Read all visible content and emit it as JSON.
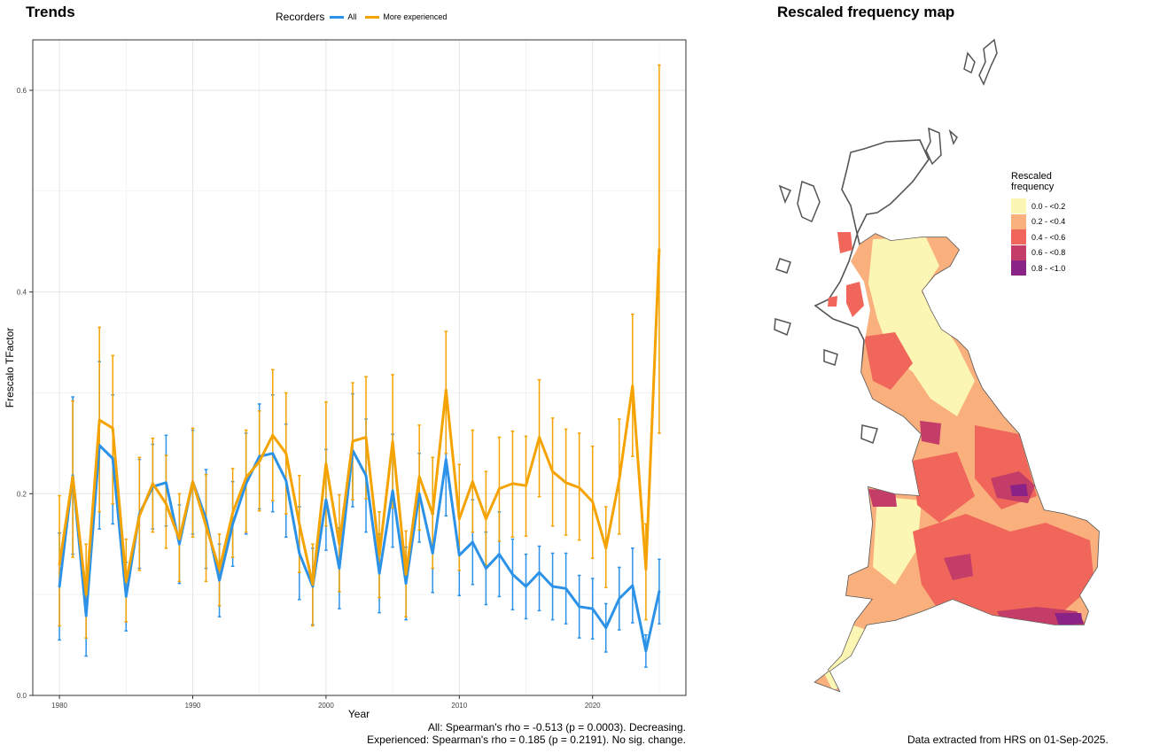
{
  "titles": {
    "trends": "Trends",
    "map": "Rescaled frequency map"
  },
  "legend": {
    "title": "Recorders",
    "items": [
      {
        "label": "All",
        "color": "#2c92e8"
      },
      {
        "label": "More experienced",
        "color": "#f5a300"
      }
    ]
  },
  "stats": {
    "all": "All: Spearman's rho = -0.513 (p = 0.0003). Decreasing.",
    "experienced": "Experienced: Spearman's rho = 0.185 (p = 0.2191). No sig. change."
  },
  "credit": "Data extracted from HRS on 01-Sep-2025.",
  "map_legend": {
    "title_line1": "Rescaled",
    "title_line2": "frequency",
    "classes": [
      {
        "label": "0.0 - <0.2",
        "color": "#fcf6b4"
      },
      {
        "label": "0.2 - <0.4",
        "color": "#f9b07d"
      },
      {
        "label": "0.4 - <0.6",
        "color": "#f0665a"
      },
      {
        "label": "0.6 - <0.8",
        "color": "#c43c68"
      },
      {
        "label": "0.8 - <1.0",
        "color": "#8a2387"
      }
    ]
  },
  "chart_data": {
    "type": "line",
    "xlabel": "Year",
    "ylabel": "Frescalo TFactor",
    "xlim": [
      1978,
      2027
    ],
    "ylim": [
      0,
      0.65
    ],
    "x_ticks": [
      1980,
      1990,
      2000,
      2010,
      2020
    ],
    "y_ticks": [
      0.0,
      0.2,
      0.4,
      0.6
    ],
    "y_tick_labels": [
      "0.0",
      "0.2",
      "0.4",
      "0.6"
    ],
    "grid": true,
    "legend_position": "top",
    "error_bars": true,
    "series": [
      {
        "name": "All",
        "color": "#2c92e8",
        "x": [
          1980,
          1981,
          1982,
          1983,
          1984,
          1985,
          1986,
          1987,
          1988,
          1989,
          1990,
          1991,
          1992,
          1993,
          1994,
          1995,
          1996,
          1997,
          1998,
          1999,
          2000,
          2001,
          2002,
          2003,
          2004,
          2005,
          2006,
          2007,
          2008,
          2009,
          2010,
          2011,
          2012,
          2013,
          2014,
          2015,
          2016,
          2017,
          2018,
          2019,
          2020,
          2021,
          2022,
          2023,
          2024,
          2025
        ],
        "y": [
          0.108,
          0.218,
          0.079,
          0.248,
          0.235,
          0.098,
          0.18,
          0.207,
          0.211,
          0.15,
          0.212,
          0.175,
          0.114,
          0.17,
          0.21,
          0.237,
          0.24,
          0.213,
          0.141,
          0.108,
          0.194,
          0.126,
          0.243,
          0.218,
          0.121,
          0.203,
          0.111,
          0.2,
          0.141,
          0.234,
          0.139,
          0.152,
          0.126,
          0.14,
          0.12,
          0.108,
          0.122,
          0.108,
          0.106,
          0.088,
          0.086,
          0.067,
          0.096,
          0.109,
          0.044,
          0.103
        ],
        "lower": [
          0.055,
          0.14,
          0.039,
          0.165,
          0.17,
          0.064,
          0.126,
          0.165,
          0.168,
          0.111,
          0.16,
          0.126,
          0.078,
          0.128,
          0.16,
          0.185,
          0.182,
          0.157,
          0.095,
          0.07,
          0.144,
          0.086,
          0.187,
          0.162,
          0.082,
          0.147,
          0.075,
          0.152,
          0.102,
          0.178,
          0.099,
          0.11,
          0.09,
          0.098,
          0.085,
          0.076,
          0.084,
          0.075,
          0.071,
          0.057,
          0.056,
          0.043,
          0.065,
          0.072,
          0.028,
          0.071
        ],
        "upper": [
          0.161,
          0.296,
          0.117,
          0.331,
          0.298,
          0.132,
          0.234,
          0.249,
          0.258,
          0.189,
          0.263,
          0.224,
          0.15,
          0.212,
          0.26,
          0.289,
          0.298,
          0.269,
          0.187,
          0.146,
          0.244,
          0.166,
          0.299,
          0.274,
          0.16,
          0.259,
          0.147,
          0.24,
          0.18,
          0.29,
          0.179,
          0.194,
          0.162,
          0.182,
          0.155,
          0.14,
          0.148,
          0.141,
          0.141,
          0.119,
          0.116,
          0.091,
          0.127,
          0.146,
          0.06,
          0.135
        ]
      },
      {
        "name": "More experienced",
        "color": "#f5a300",
        "x": [
          1980,
          1981,
          1982,
          1983,
          1984,
          1985,
          1986,
          1987,
          1988,
          1989,
          1990,
          1991,
          1992,
          1993,
          1994,
          1995,
          1996,
          1997,
          1998,
          1999,
          2000,
          2001,
          2002,
          2003,
          2004,
          2005,
          2006,
          2007,
          2008,
          2009,
          2010,
          2011,
          2012,
          2013,
          2014,
          2015,
          2016,
          2017,
          2018,
          2019,
          2020,
          2021,
          2022,
          2023,
          2024,
          2025
        ],
        "y": [
          0.13,
          0.217,
          0.1,
          0.273,
          0.265,
          0.113,
          0.178,
          0.21,
          0.19,
          0.155,
          0.212,
          0.168,
          0.125,
          0.181,
          0.216,
          0.232,
          0.258,
          0.24,
          0.17,
          0.11,
          0.23,
          0.15,
          0.252,
          0.256,
          0.139,
          0.252,
          0.12,
          0.217,
          0.18,
          0.303,
          0.175,
          0.212,
          0.175,
          0.205,
          0.21,
          0.208,
          0.256,
          0.222,
          0.211,
          0.206,
          0.192,
          0.146,
          0.214,
          0.307,
          0.125,
          0.442
        ],
        "lower": [
          0.069,
          0.137,
          0.057,
          0.182,
          0.19,
          0.073,
          0.124,
          0.162,
          0.146,
          0.113,
          0.157,
          0.113,
          0.089,
          0.137,
          0.162,
          0.183,
          0.193,
          0.18,
          0.122,
          0.069,
          0.168,
          0.103,
          0.194,
          0.195,
          0.097,
          0.186,
          0.078,
          0.164,
          0.126,
          0.24,
          0.124,
          0.162,
          0.129,
          0.153,
          0.157,
          0.158,
          0.197,
          0.168,
          0.159,
          0.154,
          0.136,
          0.107,
          0.16,
          0.237,
          0.075,
          0.26
        ],
        "upper": [
          0.198,
          0.292,
          0.15,
          0.365,
          0.337,
          0.155,
          0.236,
          0.255,
          0.238,
          0.2,
          0.265,
          0.219,
          0.16,
          0.225,
          0.263,
          0.282,
          0.323,
          0.3,
          0.218,
          0.15,
          0.291,
          0.199,
          0.31,
          0.316,
          0.182,
          0.318,
          0.163,
          0.268,
          0.236,
          0.361,
          0.229,
          0.263,
          0.222,
          0.256,
          0.262,
          0.257,
          0.313,
          0.275,
          0.264,
          0.26,
          0.247,
          0.187,
          0.274,
          0.378,
          0.17,
          0.625
        ]
      }
    ]
  }
}
